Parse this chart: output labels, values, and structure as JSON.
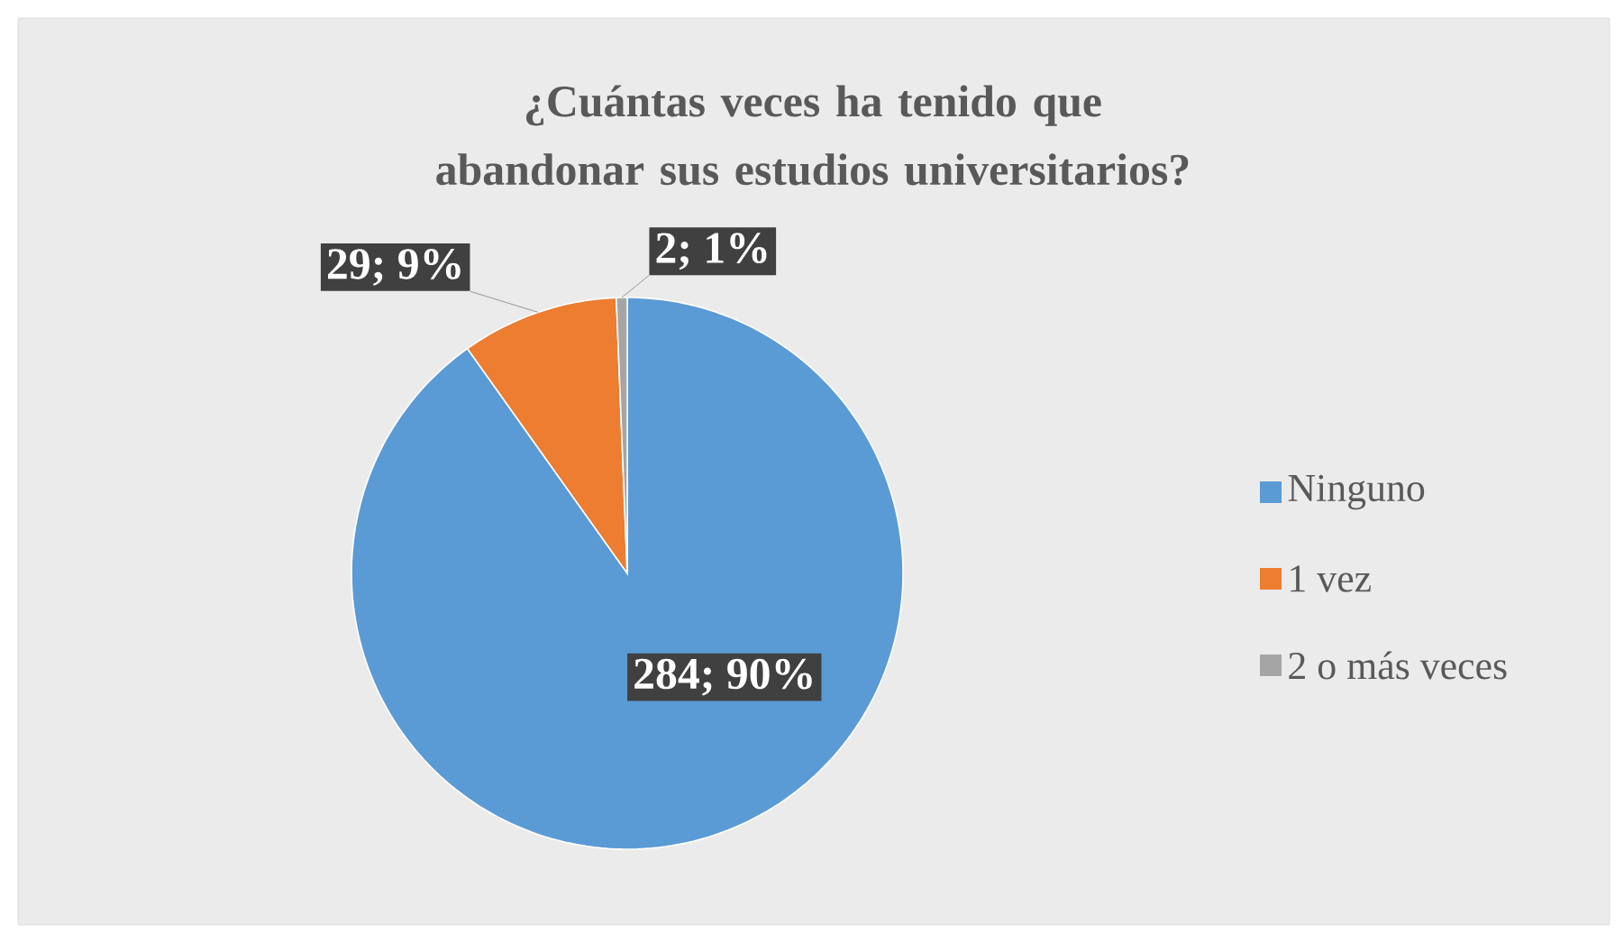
{
  "chart_data": {
    "type": "pie",
    "title": "¿Cuántas veces ha tenido que abandonar sus estudios universitarios?",
    "categories": [
      "Ninguno",
      "1 vez",
      "2 o más veces"
    ],
    "values": [
      284,
      29,
      2
    ],
    "colors": [
      "#5b9bd5",
      "#ed7d31",
      "#a5a5a5"
    ],
    "value_labels": [
      "284; 90%",
      "29; 9%",
      "2; 1%"
    ],
    "legend": "right"
  }
}
